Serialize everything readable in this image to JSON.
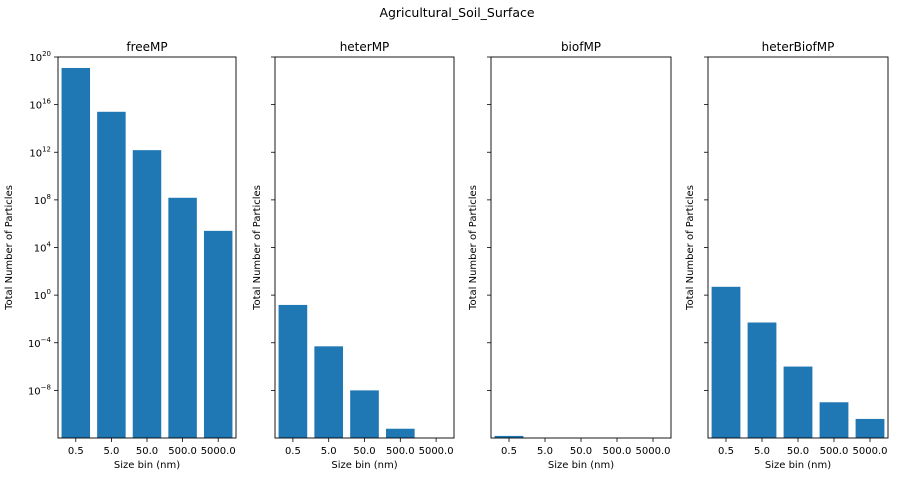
{
  "figure": {
    "title": "Agricultural_Soil_Surface"
  },
  "chart_data": [
    {
      "type": "bar",
      "title": "freeMP",
      "xlabel": "Size bin (nm)",
      "ylabel": "Total Number of Particles",
      "yscale": "log",
      "show_y_tick_labels": true,
      "categories": [
        "0.5",
        "5.0",
        "50.0",
        "500.0",
        "5000.0"
      ],
      "values": [
        1.2e+19,
        2500000000000000.0,
        1500000000000.0,
        150000000.0,
        250000.0
      ],
      "ylim": [
        1e-12,
        1e+20
      ],
      "yticks": [
        1e-08,
        0.0001,
        1,
        10000.0,
        100000000.0,
        1000000000000.0,
        1e+16,
        1e+20
      ],
      "ytick_base": "10",
      "ytick_exponents": [
        "−8",
        "−4",
        "0",
        "4",
        "8",
        "12",
        "16",
        "20"
      ],
      "bar_color": "#1f77b4"
    },
    {
      "type": "bar",
      "title": "heterMP",
      "xlabel": "Size bin (nm)",
      "ylabel": "Total Number of Particles",
      "yscale": "log",
      "show_y_tick_labels": false,
      "categories": [
        "0.5",
        "5.0",
        "50.0",
        "500.0",
        "5000.0"
      ],
      "values": [
        0.15,
        5e-05,
        1e-08,
        6e-12,
        0
      ],
      "ylim": [
        1e-12,
        1e+20
      ],
      "bar_color": "#1f77b4"
    },
    {
      "type": "bar",
      "title": "biofMP",
      "xlabel": "Size bin (nm)",
      "ylabel": "Total Number of Particles",
      "yscale": "log",
      "show_y_tick_labels": false,
      "categories": [
        "0.5",
        "5.0",
        "50.0",
        "500.0",
        "5000.0"
      ],
      "values": [
        1.5e-12,
        0,
        0,
        0,
        0
      ],
      "ylim": [
        1e-12,
        1e+20
      ],
      "bar_color": "#1f77b4"
    },
    {
      "type": "bar",
      "title": "heterBiofMP",
      "xlabel": "Size bin (nm)",
      "ylabel": "Total Number of Particles",
      "yscale": "log",
      "show_y_tick_labels": false,
      "categories": [
        "0.5",
        "5.0",
        "50.0",
        "500.0",
        "5000.0"
      ],
      "values": [
        5,
        0.005,
        1e-06,
        1e-09,
        4e-11
      ],
      "ylim": [
        1e-12,
        1e+20
      ],
      "bar_color": "#1f77b4"
    }
  ]
}
